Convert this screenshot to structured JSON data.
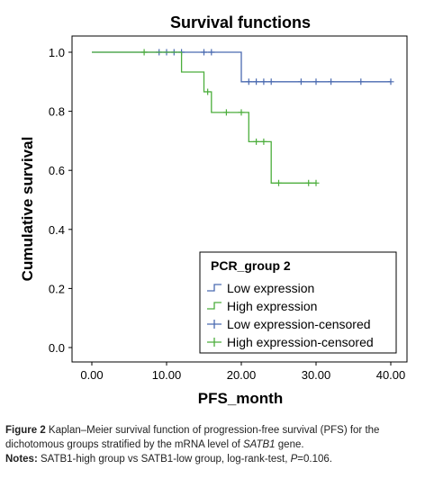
{
  "chart_data": {
    "type": "line",
    "title": "Survival functions",
    "xlabel": "PFS_month",
    "ylabel": "Cumulative survival",
    "xlim": [
      0,
      40
    ],
    "ylim": [
      0,
      1.0
    ],
    "x_ticks": [
      "0.00",
      "10.00",
      "20.00",
      "30.00",
      "40.00"
    ],
    "y_ticks": [
      "0.0",
      "0.2",
      "0.4",
      "0.6",
      "0.8",
      "1.0"
    ],
    "grid": false,
    "legend_position": "bottom-right",
    "legend_title": "PCR_group 2",
    "legend": [
      "Low expression",
      "High expression",
      "Low expression-censored",
      "High expression-censored"
    ],
    "series": [
      {
        "name": "Low expression",
        "color": "#4a6ab0",
        "steps": [
          [
            0,
            1.0
          ],
          [
            20,
            1.0
          ],
          [
            20,
            0.9
          ],
          [
            40,
            0.9
          ]
        ],
        "censored": [
          [
            9,
            1.0
          ],
          [
            10,
            1.0
          ],
          [
            11,
            1.0
          ],
          [
            12,
            1.0
          ],
          [
            15,
            1.0
          ],
          [
            16,
            1.0
          ],
          [
            21,
            0.9
          ],
          [
            22,
            0.9
          ],
          [
            23,
            0.9
          ],
          [
            24,
            0.9
          ],
          [
            28,
            0.9
          ],
          [
            30,
            0.9
          ],
          [
            32,
            0.9
          ],
          [
            36,
            0.9
          ],
          [
            40,
            0.9
          ]
        ]
      },
      {
        "name": "High expression",
        "color": "#4cae3c",
        "steps": [
          [
            0,
            1.0
          ],
          [
            12,
            1.0
          ],
          [
            12,
            0.933
          ],
          [
            15,
            0.933
          ],
          [
            15,
            0.866
          ],
          [
            16,
            0.866
          ],
          [
            16,
            0.796
          ],
          [
            21,
            0.796
          ],
          [
            21,
            0.697
          ],
          [
            24,
            0.697
          ],
          [
            24,
            0.557
          ],
          [
            30,
            0.557
          ]
        ],
        "censored": [
          [
            7,
            1.0
          ],
          [
            15.5,
            0.866
          ],
          [
            18,
            0.796
          ],
          [
            20,
            0.796
          ],
          [
            22,
            0.697
          ],
          [
            23,
            0.697
          ],
          [
            25,
            0.557
          ],
          [
            29,
            0.557
          ],
          [
            30,
            0.557
          ]
        ]
      }
    ]
  },
  "caption": {
    "figure_label": "Figure 2",
    "figure_text_1": " Kaplan–Meier survival function of progression-free survival (PFS) for the dichotomous groups stratified by the mRNA level of ",
    "figure_gene": "SATB1",
    "figure_text_2": " gene.",
    "notes_label": "Notes:",
    "notes_text_1": " SATB1-high group vs SATB1-low group, log-rank-test, ",
    "notes_p": "P",
    "notes_text_2": "=0.106."
  }
}
